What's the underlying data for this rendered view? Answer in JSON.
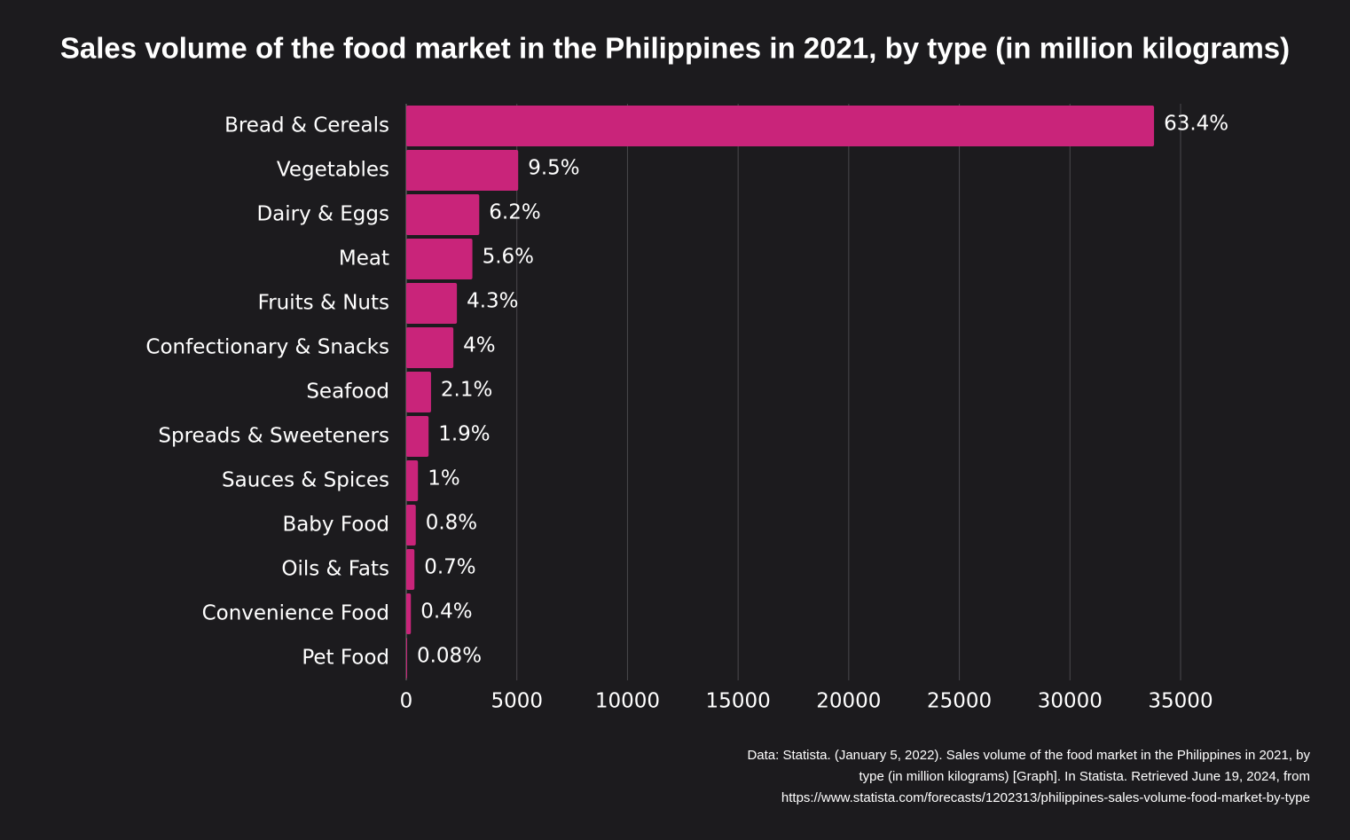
{
  "chart_data": {
    "type": "bar",
    "orientation": "horizontal",
    "title": "Sales volume of the food market in the Philippines in 2021, by type (in million kilograms)",
    "categories": [
      "Bread & Cereals",
      "Vegetables",
      "Dairy & Eggs",
      "Meat",
      "Fruits & Nuts",
      "Confectionary & Snacks",
      "Seafood",
      "Spreads & Sweeteners",
      "Sauces & Spices",
      "Baby Food",
      "Oils & Fats",
      "Convenience Food",
      "Pet Food"
    ],
    "values": [
      33800,
      5060,
      3300,
      2990,
      2290,
      2130,
      1120,
      1010,
      530,
      430,
      370,
      210,
      40
    ],
    "value_labels": [
      "63.4%",
      "9.5%",
      "6.2%",
      "5.6%",
      "4.3%",
      "4%",
      "2.1%",
      "1.9%",
      "1%",
      "0.8%",
      "0.7%",
      "0.4%",
      "0.08%"
    ],
    "color": "#c9247a",
    "xlim": [
      0,
      35000
    ],
    "xticks": [
      0,
      5000,
      10000,
      15000,
      20000,
      25000,
      30000,
      35000
    ],
    "grid": true,
    "source": [
      "Data: Statista. (January 5, 2022). Sales volume of the food market in the Philippines in 2021, by",
      "type (in million kilograms) [Graph]. In Statista. Retrieved June 19, 2024, from",
      "https://www.statista.com/forecasts/1202313/philippines-sales-volume-food-market-by-type"
    ]
  }
}
